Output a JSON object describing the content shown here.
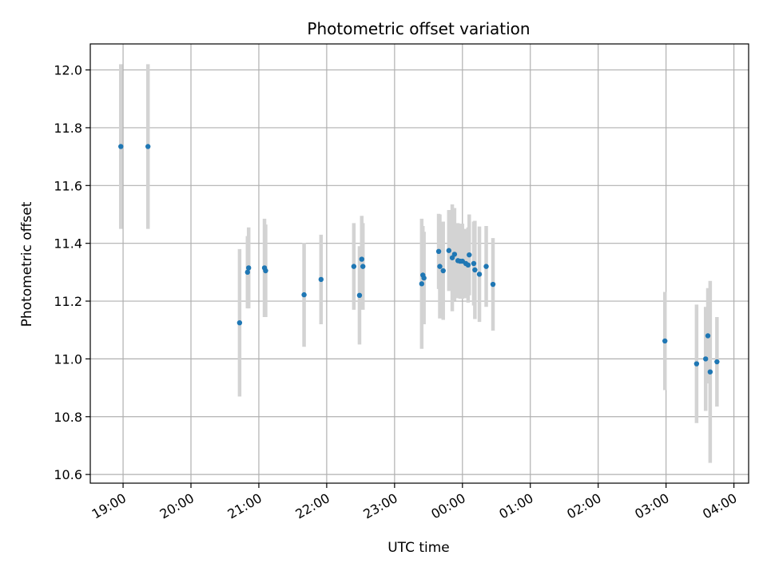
{
  "chart_data": {
    "type": "scatter",
    "title": "Photometric offset variation",
    "xlabel": "UTC time",
    "ylabel": "Photometric offset",
    "grid": true,
    "x_ticks": [
      "19:00",
      "20:00",
      "21:00",
      "22:00",
      "23:00",
      "00:00",
      "01:00",
      "02:00",
      "03:00",
      "04:00"
    ],
    "y_ticks": [
      "10.6",
      "10.8",
      "11.0",
      "11.2",
      "11.4",
      "11.6",
      "11.8",
      "12.0"
    ],
    "xlim": [
      "18:31",
      "04:13"
    ],
    "ylim": [
      10.57,
      12.09
    ],
    "colors": {
      "points": "#1f77b4",
      "errorbars": "#d3d3d3",
      "grid": "#b0b0b0"
    },
    "series": [
      {
        "points": [
          {
            "x": "18:58",
            "y": 11.735,
            "err": 0.285
          },
          {
            "x": "19:22",
            "y": 11.735,
            "err": 0.285
          },
          {
            "x": "20:43",
            "y": 11.125,
            "err": 0.255
          },
          {
            "x": "20:50",
            "y": 11.3,
            "err": 0.125
          },
          {
            "x": "20:51",
            "y": 11.315,
            "err": 0.14
          },
          {
            "x": "21:05",
            "y": 11.315,
            "err": 0.17
          },
          {
            "x": "21:06",
            "y": 11.305,
            "err": 0.16
          },
          {
            "x": "21:40",
            "y": 11.222,
            "err": 0.18
          },
          {
            "x": "21:55",
            "y": 11.275,
            "err": 0.155
          },
          {
            "x": "22:24",
            "y": 11.32,
            "err": 0.15
          },
          {
            "x": "22:29",
            "y": 11.22,
            "err": 0.17
          },
          {
            "x": "22:31",
            "y": 11.345,
            "err": 0.15
          },
          {
            "x": "22:32",
            "y": 11.32,
            "err": 0.15
          },
          {
            "x": "23:24",
            "y": 11.26,
            "err": 0.225
          },
          {
            "x": "23:25",
            "y": 11.29,
            "err": 0.17
          },
          {
            "x": "23:26",
            "y": 11.28,
            "err": 0.16
          },
          {
            "x": "23:39",
            "y": 11.372,
            "err": 0.13
          },
          {
            "x": "23:40",
            "y": 11.32,
            "err": 0.18
          },
          {
            "x": "23:43",
            "y": 11.305,
            "err": 0.17
          },
          {
            "x": "23:48",
            "y": 11.375,
            "err": 0.14
          },
          {
            "x": "23:51",
            "y": 11.35,
            "err": 0.185
          },
          {
            "x": "23:53",
            "y": 11.362,
            "err": 0.16
          },
          {
            "x": "23:56",
            "y": 11.34,
            "err": 0.13
          },
          {
            "x": "23:58",
            "y": 11.338,
            "err": 0.13
          },
          {
            "x": "00:00",
            "y": 11.338,
            "err": 0.13
          },
          {
            "x": "00:03",
            "y": 11.33,
            "err": 0.12
          },
          {
            "x": "00:05",
            "y": 11.325,
            "err": 0.13
          },
          {
            "x": "00:06",
            "y": 11.36,
            "err": 0.14
          },
          {
            "x": "00:10",
            "y": 11.33,
            "err": 0.145
          },
          {
            "x": "00:11",
            "y": 11.308,
            "err": 0.17
          },
          {
            "x": "00:15",
            "y": 11.293,
            "err": 0.165
          },
          {
            "x": "00:21",
            "y": 11.32,
            "err": 0.14
          },
          {
            "x": "00:27",
            "y": 11.258,
            "err": 0.16
          },
          {
            "x": "02:59",
            "y": 11.062,
            "err": 0.17
          },
          {
            "x": "03:27",
            "y": 10.983,
            "err": 0.205
          },
          {
            "x": "03:35",
            "y": 11.0,
            "err": 0.18
          },
          {
            "x": "03:37",
            "y": 11.08,
            "err": 0.165
          },
          {
            "x": "03:39",
            "y": 10.955,
            "err": 0.315
          },
          {
            "x": "03:45",
            "y": 10.99,
            "err": 0.155
          }
        ]
      }
    ]
  }
}
